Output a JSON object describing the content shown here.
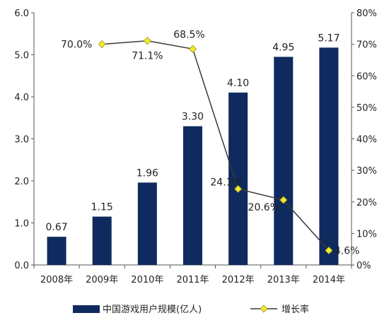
{
  "chart_data": {
    "type": "bar",
    "categories": [
      "2008年",
      "2009年",
      "2010年",
      "2011年",
      "2012年",
      "2013年",
      "2014年"
    ],
    "series": [
      {
        "name": "中国游戏用户规模(亿人)",
        "type": "bar",
        "axis": "left",
        "values": [
          0.67,
          1.15,
          1.96,
          3.3,
          4.1,
          4.95,
          5.17
        ],
        "labels": [
          "0.67",
          "1.15",
          "1.96",
          "3.30",
          "4.10",
          "4.95",
          "5.17"
        ],
        "color": "#0f2a5e"
      },
      {
        "name": "增长率",
        "type": "line",
        "axis": "right",
        "values": [
          null,
          70.0,
          71.1,
          68.5,
          24.1,
          20.6,
          4.6
        ],
        "labels": [
          null,
          "70.0%",
          "71.1%",
          "68.5%",
          "24.1%",
          "20.6%",
          "4.6%"
        ],
        "line_color": "#3a3a3a",
        "marker_color": "#f2ea2c"
      }
    ],
    "left_axis": {
      "ylim": [
        0,
        6.0
      ],
      "ticks": [
        "0.0",
        "1.0",
        "2.0",
        "3.0",
        "4.0",
        "5.0",
        "6.0"
      ]
    },
    "right_axis": {
      "ylim": [
        0,
        80
      ],
      "ticks": [
        "0%",
        "10%",
        "20%",
        "30%",
        "40%",
        "50%",
        "60%",
        "70%",
        "80%"
      ]
    },
    "grid": false,
    "legend_position": "bottom"
  }
}
